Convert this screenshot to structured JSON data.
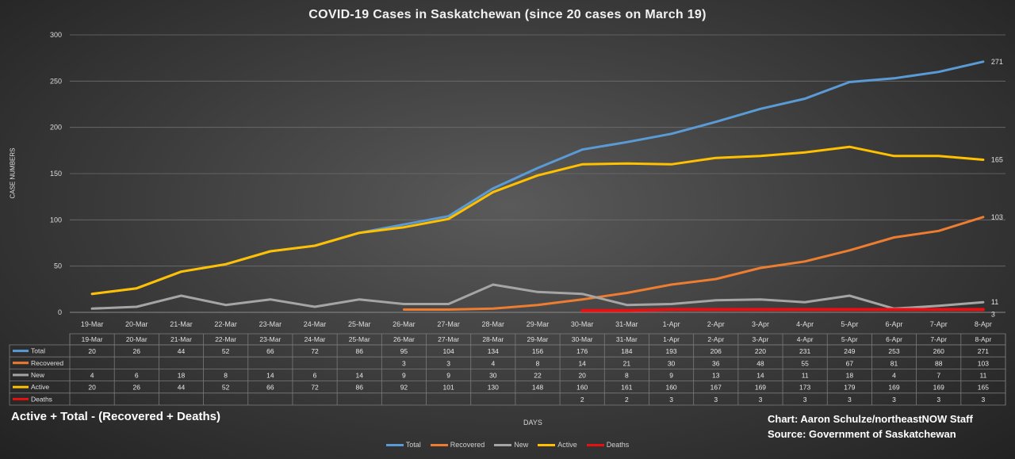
{
  "chart_data": {
    "type": "line",
    "title": "COVID-19 Cases in Saskatchewan (since 20 cases on March 19)",
    "ylabel": "CASE NUMBERS",
    "xlabel": "DAYS",
    "ylim": [
      0,
      300
    ],
    "yticks": [
      "0",
      "50",
      "100",
      "150",
      "200",
      "250",
      "300"
    ],
    "categories": [
      "19-Mar",
      "20-Mar",
      "21-Mar",
      "22-Mar",
      "23-Mar",
      "24-Mar",
      "25-Mar",
      "26-Mar",
      "27-Mar",
      "28-Mar",
      "29-Mar",
      "30-Mar",
      "31-Mar",
      "1-Apr",
      "2-Apr",
      "3-Apr",
      "4-Apr",
      "5-Apr",
      "6-Apr",
      "7-Apr",
      "8-Apr"
    ],
    "series": [
      {
        "name": "Total",
        "color": "#5b9bd5",
        "values": [
          20,
          26,
          44,
          52,
          66,
          72,
          86,
          95,
          104,
          134,
          156,
          176,
          184,
          193,
          206,
          220,
          231,
          249,
          253,
          260,
          271
        ],
        "end_label": "271"
      },
      {
        "name": "Recovered",
        "color": "#ed7d31",
        "values": [
          null,
          null,
          null,
          null,
          null,
          null,
          null,
          3,
          3,
          4,
          8,
          14,
          21,
          30,
          36,
          48,
          55,
          67,
          81,
          88,
          103
        ],
        "end_label": "103"
      },
      {
        "name": "New",
        "color": "#a5a5a5",
        "values": [
          4,
          6,
          18,
          8,
          14,
          6,
          14,
          9,
          9,
          30,
          22,
          20,
          8,
          9,
          13,
          14,
          11,
          18,
          4,
          7,
          11
        ],
        "end_label": "11"
      },
      {
        "name": "Active",
        "color": "#ffc000",
        "values": [
          20,
          26,
          44,
          52,
          66,
          72,
          86,
          92,
          101,
          130,
          148,
          160,
          161,
          160,
          167,
          169,
          173,
          179,
          169,
          169,
          165
        ],
        "end_label": "165"
      },
      {
        "name": "Deaths",
        "color": "#e81010",
        "values": [
          null,
          null,
          null,
          null,
          null,
          null,
          null,
          null,
          null,
          null,
          null,
          2,
          2,
          3,
          3,
          3,
          3,
          3,
          3,
          3,
          3
        ],
        "end_label": "3"
      }
    ],
    "legend_position": "bottom",
    "grid": true
  },
  "annotations": {
    "formula": "Active + Total - (Recovered + Deaths)",
    "credit_line1": "Chart: Aaron Schulze/northeastNOW Staff",
    "credit_line2": "Source: Government of Saskatchewan"
  }
}
